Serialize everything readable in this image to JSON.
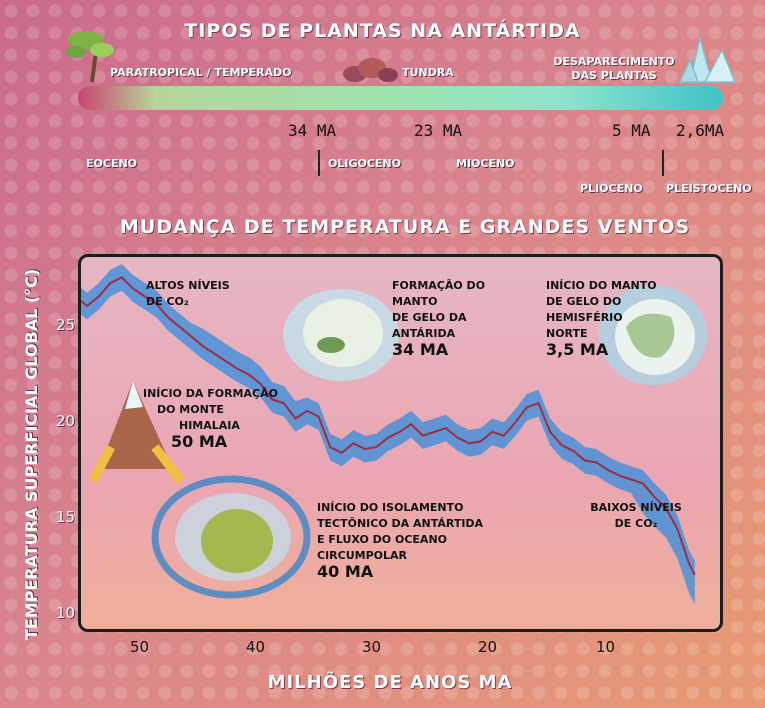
{
  "header": {
    "title": "TIPOS DE PLANTAS NA ANTÁRTIDA",
    "plant_types": [
      "PARATROPICAL / TEMPERADO",
      "TUNDRA",
      "DESAPARECIMENTO",
      "DAS PLANTAS"
    ]
  },
  "timeline": {
    "ma_labels": [
      "34 MA",
      "23 MA",
      "5 MA",
      "2,6MA"
    ],
    "epochs": [
      {
        "name": "EOCENO",
        "color": "#cc4670"
      },
      {
        "name": "OLIGOCENO",
        "color": "#ee8f7c"
      },
      {
        "name": "MIOCENO",
        "color": "#5aa155"
      },
      {
        "name": "PLIOCENO",
        "color": "#a9dfdf"
      },
      {
        "name": "PLEISTOCENO",
        "color": "#4e5aa4"
      }
    ],
    "epoch_labels_below": [
      "PLIOCENO",
      "PLEISTOCENO"
    ]
  },
  "chart_title": "MUDANÇA DE TEMPERATURA E GRANDES VENTOS",
  "chart_data": {
    "type": "line",
    "ylabel": "TEMPERATURA SUPERFICIAL GLOBAL (°C)",
    "xlabel": "MILHÕES DE ANOS MA",
    "xlim": [
      56,
      2
    ],
    "ylim": [
      9.5,
      28.5
    ],
    "xticks": [
      "50",
      "40",
      "30",
      "20",
      "10"
    ],
    "yticks": [
      "25",
      "20",
      "15",
      "10"
    ],
    "line_color": "#9a2f3f",
    "band_color": "#4a90d9",
    "series": [
      {
        "x": [
          56,
          55,
          54,
          53,
          52,
          51,
          50,
          49,
          48,
          47,
          46,
          45,
          44,
          43,
          42,
          41,
          40,
          39,
          38,
          37,
          36,
          35,
          34,
          33,
          32,
          31,
          30,
          29,
          28,
          27,
          26,
          25,
          24,
          23,
          22,
          21,
          20,
          19,
          18,
          17,
          16,
          15,
          14,
          13,
          12,
          11,
          10,
          9,
          8,
          7,
          6,
          5,
          4,
          3,
          2.5
        ],
        "y": [
          26.6,
          26.1,
          26.6,
          27.3,
          27.6,
          27.0,
          26.6,
          26.2,
          25.5,
          25.0,
          24.5,
          24.0,
          23.6,
          23.2,
          22.8,
          22.5,
          22.0,
          21.2,
          21.0,
          20.2,
          20.6,
          20.3,
          18.7,
          18.4,
          18.9,
          18.6,
          18.7,
          19.2,
          19.5,
          19.9,
          19.3,
          19.5,
          19.7,
          19.2,
          18.9,
          19.0,
          19.5,
          19.3,
          20.0,
          20.8,
          21.0,
          19.5,
          18.8,
          18.5,
          18.0,
          17.9,
          17.5,
          17.2,
          17.0,
          16.8,
          16.1,
          15.5,
          14.4,
          12.6,
          12.0
        ]
      }
    ],
    "band_halfwidth": 0.7
  },
  "annotations": [
    {
      "lines": [
        "ALTOS NÍVEIS",
        "DE CO₂"
      ]
    },
    {
      "lines": [
        "FORMAÇÃO DO",
        "MANTO",
        "DE GELO DA",
        "ANTÁRIDA"
      ],
      "ma": "34 MA"
    },
    {
      "lines": [
        "INÍCIO DO MANTO",
        "DE GELO DO",
        "HEMISFÉRIO",
        "NORTE"
      ],
      "ma": "3,5 MA"
    },
    {
      "lines": [
        "INÍCIO DA FORMAÇÃO",
        "DO MONTE",
        "HIMALAIA"
      ],
      "ma": "50 MA"
    },
    {
      "lines": [
        "INÍCIO DO ISOLAMENTO",
        "TECTÔNICO DA ANTÁRTIDA",
        "E FLUXO DO OCEANO",
        "CIRCUMPOLAR"
      ],
      "ma": "40 MA"
    },
    {
      "lines": [
        "BAIXOS NÍVEIS",
        "DE CO₂"
      ]
    }
  ]
}
